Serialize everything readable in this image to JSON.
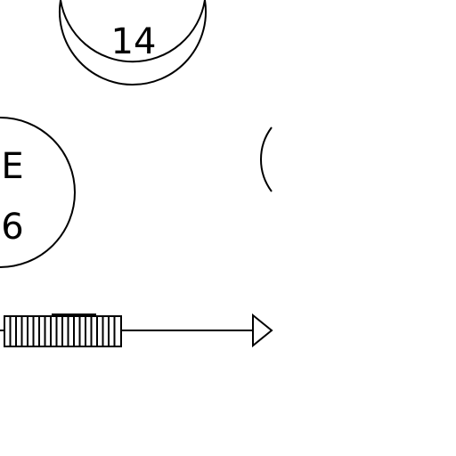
{
  "diagram": {
    "nodes": [
      {
        "id": "node-top",
        "lines": [
          "14"
        ]
      },
      {
        "id": "node-left",
        "lines": [
          "E",
          "6"
        ]
      },
      {
        "id": "node-right-partial",
        "lines": []
      }
    ],
    "connector": {
      "style": "hatched-bar-with-arrow",
      "arrowhead": "open-triangle"
    },
    "colors": {
      "stroke": "#000000",
      "background": "#ffffff"
    }
  }
}
